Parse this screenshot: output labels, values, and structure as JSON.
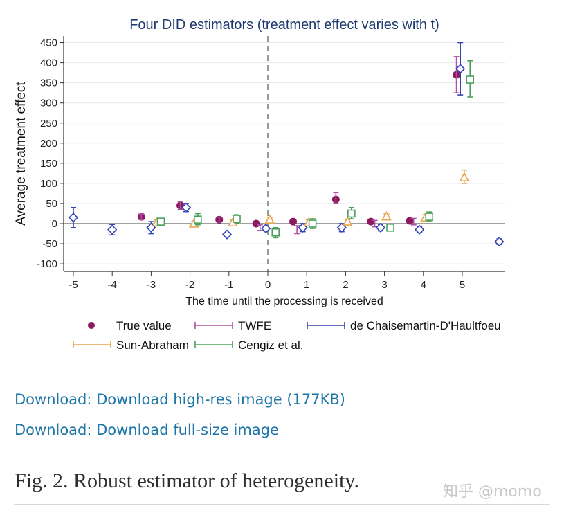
{
  "chart_data": {
    "type": "scatter",
    "title": "Four DID estimators (treatment effect varies with t)",
    "xlabel": "The time until the processing is received",
    "ylabel": "Average treatment effect",
    "xlim": [
      -5.2,
      6.0
    ],
    "ylim": [
      -110,
      465
    ],
    "xticks": [
      "-5",
      "-4",
      "-3",
      "-2",
      "-1",
      "0",
      "1",
      "2",
      "3",
      "4",
      "5"
    ],
    "yticks": [
      "450",
      "400",
      "350",
      "300",
      "250",
      "200",
      "150",
      "100",
      "50",
      "0",
      "-50",
      "-100"
    ],
    "reference_line_x": 0,
    "grid": true,
    "legend_position": "bottom",
    "series": [
      {
        "name": "True value",
        "marker": "dot",
        "color": "#8b1a5e",
        "points": [
          {
            "x": -3.25,
            "y": 17
          },
          {
            "x": -2.25,
            "y": 45
          },
          {
            "x": -1.25,
            "y": 10
          },
          {
            "x": -0.3,
            "y": 0
          },
          {
            "x": 0.65,
            "y": 5
          },
          {
            "x": 1.75,
            "y": 60
          },
          {
            "x": 2.65,
            "y": 5
          },
          {
            "x": 3.65,
            "y": 7
          },
          {
            "x": 4.85,
            "y": 370
          }
        ]
      },
      {
        "name": "TWFE",
        "marker": "none",
        "color": "#b24fa2",
        "points": [
          {
            "x": -3.25,
            "y": 17,
            "lo": 10,
            "hi": 24
          },
          {
            "x": -2.25,
            "y": 45,
            "lo": 35,
            "hi": 55
          },
          {
            "x": -1.25,
            "y": 10,
            "lo": 4,
            "hi": 16
          },
          {
            "x": -0.2,
            "y": -10,
            "lo": -17,
            "hi": -3
          },
          {
            "x": 0.75,
            "y": -15,
            "lo": -25,
            "hi": -5
          },
          {
            "x": 1.75,
            "y": 60,
            "lo": 50,
            "hi": 77
          },
          {
            "x": 2.75,
            "y": 0,
            "lo": -8,
            "hi": 8
          },
          {
            "x": 3.75,
            "y": 5,
            "lo": -3,
            "hi": 13
          },
          {
            "x": 4.85,
            "y": 370,
            "lo": 325,
            "hi": 415
          }
        ]
      },
      {
        "name": "de Chaisemartin-D'Haultfoeu",
        "marker": "diamond",
        "color": "#3344b5",
        "points": [
          {
            "x": -5,
            "y": 15,
            "lo": -10,
            "hi": 40
          },
          {
            "x": -4,
            "y": -15,
            "lo": -28,
            "hi": -2
          },
          {
            "x": -3,
            "y": -10,
            "lo": -25,
            "hi": 5
          },
          {
            "x": -2.1,
            "y": 40,
            "lo": 30,
            "hi": 50
          },
          {
            "x": -1.05,
            "y": -27,
            "lo": -27,
            "hi": -27
          },
          {
            "x": -0.05,
            "y": -12,
            "lo": -18,
            "hi": -6
          },
          {
            "x": 0.9,
            "y": -10,
            "lo": -20,
            "hi": 0
          },
          {
            "x": 1.9,
            "y": -10,
            "lo": -20,
            "hi": 0
          },
          {
            "x": 2.9,
            "y": -10,
            "lo": -18,
            "hi": -2
          },
          {
            "x": 3.9,
            "y": -15,
            "lo": -22,
            "hi": -8
          },
          {
            "x": 4.95,
            "y": 385,
            "lo": 320,
            "hi": 450
          },
          {
            "x": 5.95,
            "y": -45,
            "lo": -52,
            "hi": -38
          }
        ]
      },
      {
        "name": "Sun-Abraham",
        "marker": "triangle",
        "color": "#e8a24a",
        "points": [
          {
            "x": -2.85,
            "y": 3,
            "lo": -3,
            "hi": 9
          },
          {
            "x": -1.9,
            "y": 0,
            "lo": -5,
            "hi": 5
          },
          {
            "x": -0.9,
            "y": 3,
            "lo": -3,
            "hi": 9
          },
          {
            "x": 0.05,
            "y": 10,
            "lo": 5,
            "hi": 15
          },
          {
            "x": 1.05,
            "y": 3,
            "lo": -3,
            "hi": 9
          },
          {
            "x": 2.05,
            "y": 5,
            "lo": 0,
            "hi": 10
          },
          {
            "x": 3.05,
            "y": 18,
            "lo": 12,
            "hi": 24
          },
          {
            "x": 4.05,
            "y": 15,
            "lo": 8,
            "hi": 22
          },
          {
            "x": 5.05,
            "y": 115,
            "lo": 100,
            "hi": 133
          }
        ]
      },
      {
        "name": "Cengiz et al.",
        "marker": "square",
        "color": "#4aa05a",
        "points": [
          {
            "x": -2.75,
            "y": 5,
            "lo": -3,
            "hi": 13
          },
          {
            "x": -1.8,
            "y": 10,
            "lo": -3,
            "hi": 25
          },
          {
            "x": -0.8,
            "y": 12,
            "lo": 2,
            "hi": 22
          },
          {
            "x": 0.2,
            "y": -22,
            "lo": -35,
            "hi": -10
          },
          {
            "x": 1.15,
            "y": 0,
            "lo": -12,
            "hi": 12
          },
          {
            "x": 2.15,
            "y": 25,
            "lo": 12,
            "hi": 40
          },
          {
            "x": 3.15,
            "y": -10,
            "lo": -18,
            "hi": -2
          },
          {
            "x": 4.15,
            "y": 17,
            "lo": 5,
            "hi": 29
          },
          {
            "x": 5.2,
            "y": 358,
            "lo": 315,
            "hi": 405
          }
        ]
      }
    ]
  },
  "links": [
    {
      "label": "Download: Download high-res image (177KB)"
    },
    {
      "label": "Download: Download full-size image"
    }
  ],
  "caption": "Fig. 2. Robust estimator of heterogeneity.",
  "watermark": "知乎 @momo"
}
